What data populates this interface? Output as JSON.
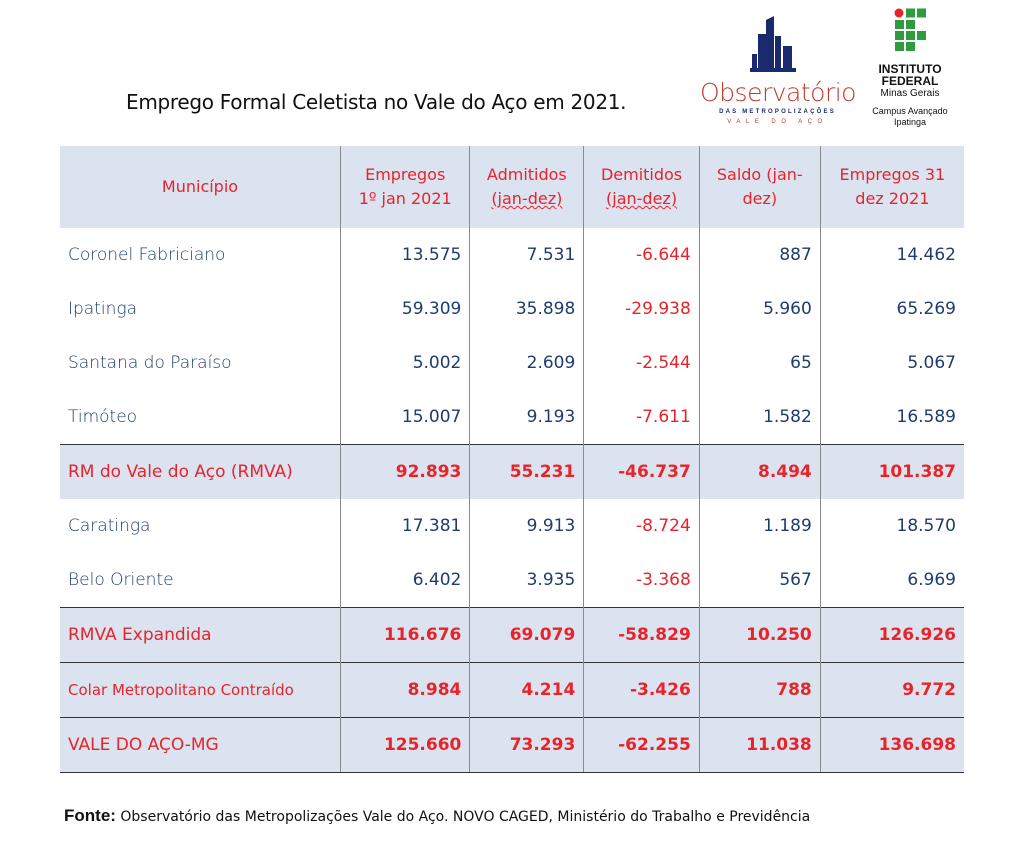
{
  "title": "Emprego Formal Celetista no Vale do Aço em 2021.",
  "logo_obs": {
    "name": "Observatório",
    "sub1": "DAS METROPOLIZAÇÕES",
    "sub2": "VALE DO AÇO",
    "icon": "buildings-icon"
  },
  "logo_if": {
    "line1": "INSTITUTO",
    "line2": "FEDERAL",
    "line3": "Minas Gerais",
    "line4": "Campus Avançado",
    "line5": "Ipatinga",
    "icon": "if-grid-icon",
    "colors": {
      "green": "#2e9b3e",
      "red": "#e8232a"
    }
  },
  "table": {
    "headers": {
      "municipio": "Município",
      "c1a": "Empregos",
      "c1b": "1º jan 2021",
      "c2a": "Admitidos",
      "c2b": "(jan-dez)",
      "c3a": "Demitidos",
      "c3b": "(jan-dez)",
      "c4a": "Saldo (jan-",
      "c4b": "dez)",
      "c5a": "Empregos 31",
      "c5b": "dez 2021"
    },
    "rows": [
      {
        "name": "Coronel Fabriciano",
        "e1": "13.575",
        "adm": "7.531",
        "dem": "-6.644",
        "saldo": "887",
        "e31": "14.462"
      },
      {
        "name": "Ipatinga",
        "e1": "59.309",
        "adm": "35.898",
        "dem": "-29.938",
        "saldo": "5.960",
        "e31": "65.269"
      },
      {
        "name": "Santana do Paraíso",
        "e1": "5.002",
        "adm": "2.609",
        "dem": "-2.544",
        "saldo": "65",
        "e31": "5.067"
      },
      {
        "name": "Timóteo",
        "e1": "15.007",
        "adm": "9.193",
        "dem": "-7.611",
        "saldo": "1.582",
        "e31": "16.589"
      },
      {
        "name": "RM do Vale do Aço (RMVA)",
        "e1": "92.893",
        "adm": "55.231",
        "dem": "-46.737",
        "saldo": "8.494",
        "e31": "101.387"
      },
      {
        "name": "Caratinga",
        "e1": "17.381",
        "adm": "9.913",
        "dem": "-8.724",
        "saldo": "1.189",
        "e31": "18.570"
      },
      {
        "name": "Belo Oriente",
        "e1": "6.402",
        "adm": "3.935",
        "dem": "-3.368",
        "saldo": "567",
        "e31": "6.969"
      },
      {
        "name": "RMVA Expandida",
        "e1": "116.676",
        "adm": "69.079",
        "dem": "-58.829",
        "saldo": "10.250",
        "e31": "126.926"
      },
      {
        "name": "Colar Metropolitano Contraído",
        "e1": "8.984",
        "adm": "4.214",
        "dem": "-3.426",
        "saldo": "788",
        "e31": "9.772"
      },
      {
        "name": "VALE DO AÇO-MG",
        "e1": "125.660",
        "adm": "73.293",
        "dem": "-62.255",
        "saldo": "11.038",
        "e31": "136.698"
      }
    ]
  },
  "fonte": {
    "label": "Fonte:",
    "text": " Observatório das Metropolizações Vale do Aço. NOVO CAGED, Ministério do Trabalho e Previdência"
  }
}
